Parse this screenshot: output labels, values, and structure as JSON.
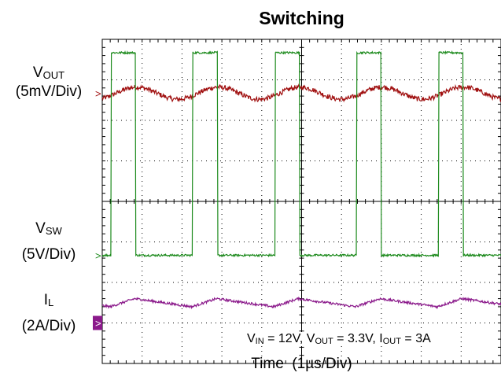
{
  "chart_data": {
    "type": "line",
    "title": "Switching",
    "xlabel": "Time",
    "xunit": "(1µs/Div)",
    "x_divisions": 10,
    "y_divisions": 8,
    "grid": true,
    "series": [
      {
        "name_main": "V",
        "name_sub": "OUT",
        "scale": "(5mV/Div)",
        "color": "#a01010",
        "marker": ">",
        "ground_level_div": 6.67,
        "waveform": "ripple",
        "period_div": 2.05,
        "peak_to_peak_div": 0.3,
        "peak_to_peak_mV": 1.5
      },
      {
        "name_main": "V",
        "name_sub": "SW",
        "scale": "(5V/Div)",
        "color": "#1c8a1c",
        "marker": ">",
        "ground_level_div": 2.67,
        "waveform": "pulse",
        "period_div": 2.05,
        "pulse_width_div": 0.62,
        "high_level_div": 5.0,
        "high_level_V": 11.9,
        "rising_edges_div": [
          0.22,
          2.27,
          4.33,
          6.38,
          8.43
        ]
      },
      {
        "name_main": "I",
        "name_sub": "L",
        "scale": "(2A/Div)",
        "color": "#8b1a8b",
        "marker": ">",
        "ground_level_div": 1.0,
        "waveform": "triangle",
        "period_div": 2.05,
        "dc_level_div": 1.5,
        "dc_level_A": 3.0,
        "peak_to_peak_div": 0.2
      }
    ],
    "conditions": [
      {
        "main": "V",
        "sub": "IN",
        "value": " = 12V"
      },
      {
        "main": "V",
        "sub": "OUT",
        "value": " = 3.3V"
      },
      {
        "main": "I",
        "sub": "OUT",
        "value": " = 3A"
      }
    ]
  }
}
